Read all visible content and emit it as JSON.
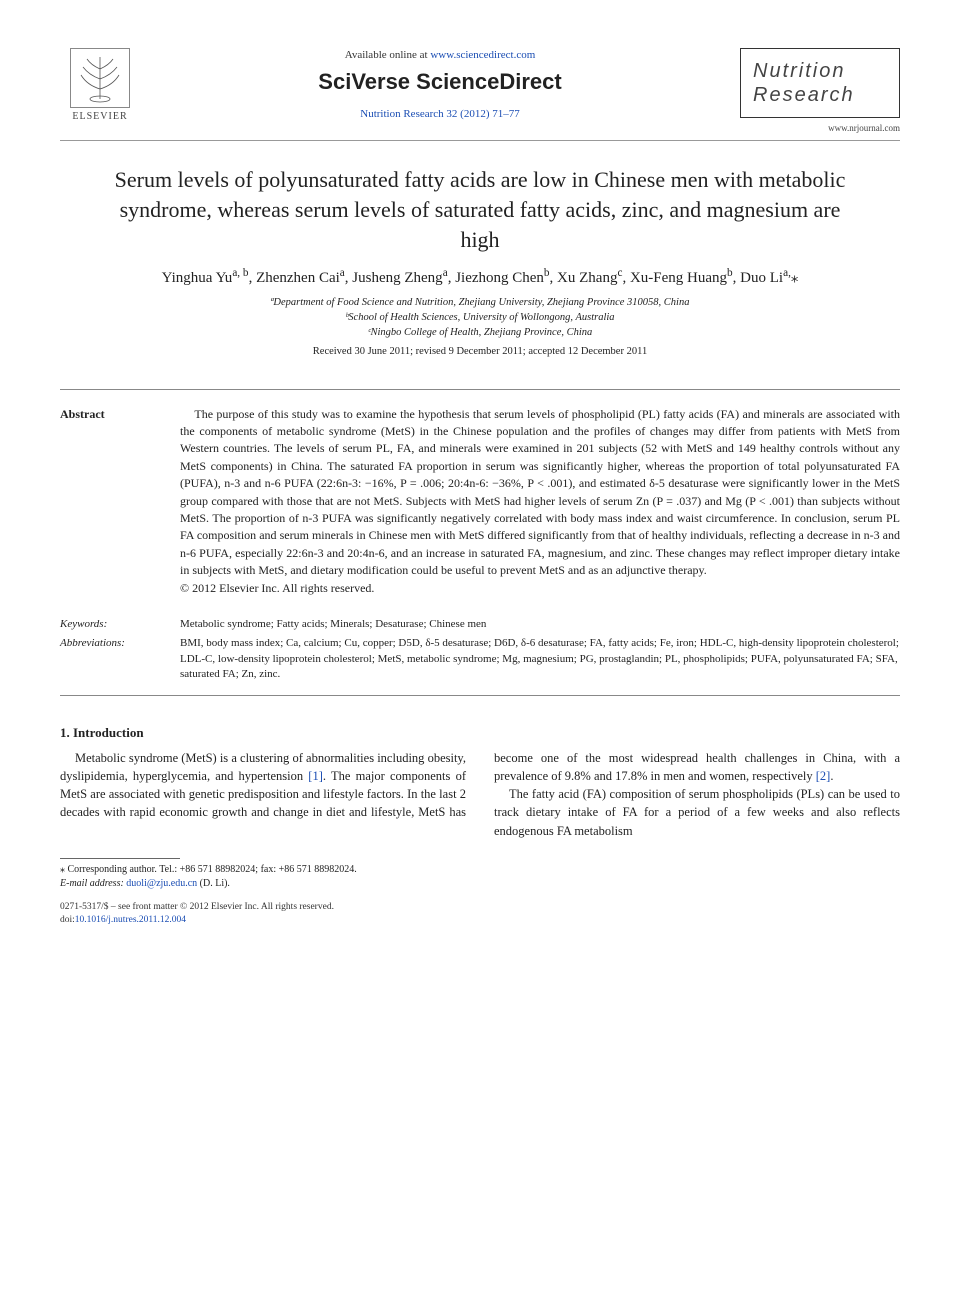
{
  "header": {
    "publisher_name": "ELSEVIER",
    "available_prefix": "Available online at ",
    "available_url": "www.sciencedirect.com",
    "platform": "SciVerse ScienceDirect",
    "journal_ref": "Nutrition Research 32 (2012) 71–77",
    "journal_title_line1": "Nutrition",
    "journal_title_line2": "Research",
    "journal_url": "www.nrjournal.com"
  },
  "article": {
    "title": "Serum levels of polyunsaturated fatty acids are low in Chinese men with metabolic syndrome, whereas serum levels of saturated fatty acids, zinc, and magnesium are high",
    "authors_html": "Yinghua Yu<sup>a, b</sup>, Zhenzhen Cai<sup>a</sup>, Jusheng Zheng<sup>a</sup>, Jiezhong Chen<sup>b</sup>, Xu Zhang<sup>c</sup>, Xu-Feng Huang<sup>b</sup>, Duo Li<sup>a,</sup>⁎",
    "affiliations": [
      "ªDepartment of Food Science and Nutrition, Zhejiang University, Zhejiang Province 310058, China",
      "ᵇSchool of Health Sciences, University of Wollongong, Australia",
      "ᶜNingbo College of Health, Zhejiang Province, China"
    ],
    "dates": "Received 30 June 2011; revised 9 December 2011; accepted 12 December 2011"
  },
  "abstract": {
    "label": "Abstract",
    "text": "The purpose of this study was to examine the hypothesis that serum levels of phospholipid (PL) fatty acids (FA) and minerals are associated with the components of metabolic syndrome (MetS) in the Chinese population and the profiles of changes may differ from patients with MetS from Western countries. The levels of serum PL, FA, and minerals were examined in 201 subjects (52 with MetS and 149 healthy controls without any MetS components) in China. The saturated FA proportion in serum was significantly higher, whereas the proportion of total polyunsaturated FA (PUFA), n-3 and n-6 PUFA (22:6n-3: −16%, P = .006; 20:4n-6: −36%, P < .001), and estimated δ-5 desaturase were significantly lower in the MetS group compared with those that are not MetS. Subjects with MetS had higher levels of serum Zn (P = .037) and Mg (P < .001) than subjects without MetS. The proportion of n-3 PUFA was significantly negatively correlated with body mass index and waist circumference. In conclusion, serum PL FA composition and serum minerals in Chinese men with MetS differed significantly from that of healthy individuals, reflecting a decrease in n-3 and n-6 PUFA, especially 22:6n-3 and 20:4n-6, and an increase in saturated FA, magnesium, and zinc. These changes may reflect improper dietary intake in subjects with MetS, and dietary modification could be useful to prevent MetS and as an adjunctive therapy.",
    "copyright": "© 2012 Elsevier Inc. All rights reserved."
  },
  "keywords": {
    "label": "Keywords:",
    "text": "Metabolic syndrome; Fatty acids; Minerals; Desaturase; Chinese men"
  },
  "abbreviations": {
    "label": "Abbreviations:",
    "text": "BMI, body mass index; Ca, calcium; Cu, copper; D5D, δ-5 desaturase; D6D, δ-6 desaturase; FA, fatty acids; Fe, iron; HDL-C, high-density lipoprotein cholesterol; LDL-C, low-density lipoprotein cholesterol; MetS, metabolic syndrome; Mg, magnesium; PG, prostaglandin; PL, phospholipids; PUFA, polyunsaturated FA; SFA, saturated FA; Zn, zinc."
  },
  "intro": {
    "heading": "1. Introduction",
    "para1_a": "Metabolic syndrome (MetS) is a clustering of abnormalities including obesity, dyslipidemia, hyperglycemia, and hypertension ",
    "ref1": "[1]",
    "para1_b": ". The major components of MetS are associated with genetic predisposition and lifestyle factors. In the last 2 decades with rapid economic growth and change in diet and lifestyle, MetS has become one of the most widespread health challenges in China, with a prevalence of 9.8% and 17.8% in men and women, respectively ",
    "ref2": "[2]",
    "para1_c": ".",
    "para2": "The fatty acid (FA) composition of serum phospholipids (PLs) can be used to track dietary intake of FA for a period of a few weeks and also reflects endogenous FA metabolism"
  },
  "footnote": {
    "corr": "⁎ Corresponding author. Tel.: +86 571 88982024; fax: +86 571 88982024.",
    "email_label": "E-mail address: ",
    "email": "duoli@zju.edu.cn",
    "email_suffix": " (D. Li)."
  },
  "footer": {
    "copyright": "0271-5317/$ – see front matter © 2012 Elsevier Inc. All rights reserved.",
    "doi_label": "doi:",
    "doi": "10.1016/j.nutres.2011.12.004"
  }
}
